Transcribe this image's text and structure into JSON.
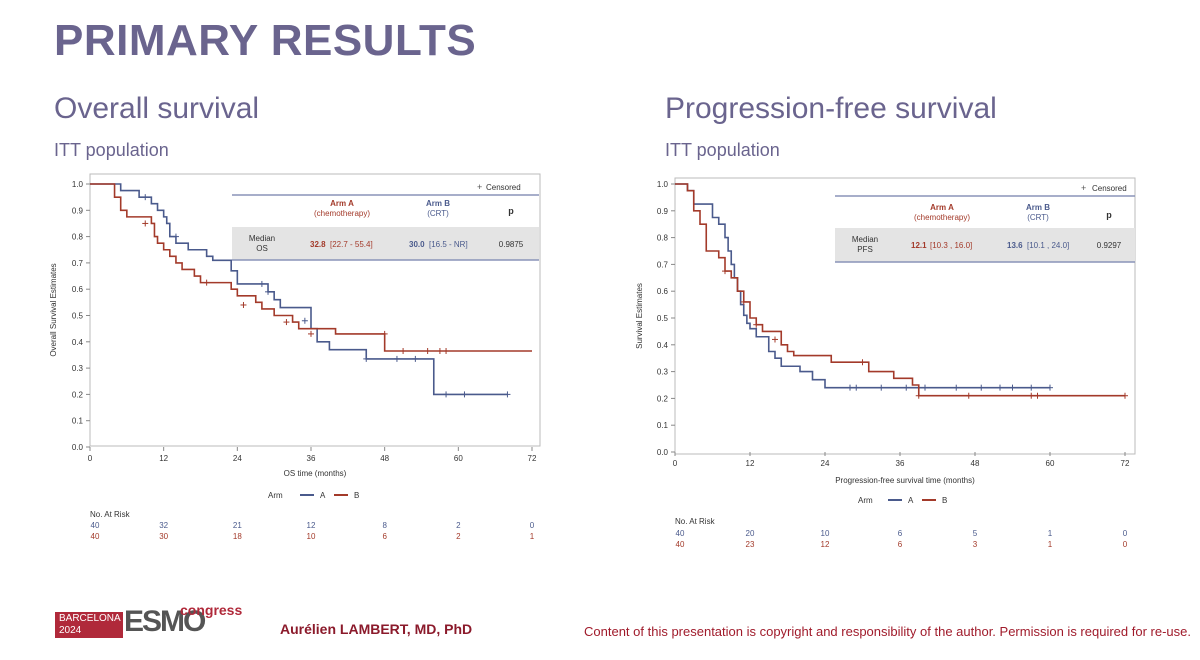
{
  "slide": {
    "title": "PRIMARY RESULTS",
    "author": "Aurélien LAMBERT, MD, PhD",
    "copyright": "Content of this presentation is copyright and responsibility of the author. Permission is required for re-use.",
    "logo": {
      "city": "BARCELONA",
      "year": "2024",
      "brand": "ESMO",
      "suffix": "congress"
    }
  },
  "colors": {
    "title": "#6a648e",
    "arm_a": "#4a5a8c",
    "arm_b": "#a33a2a",
    "brand": "#b0293a"
  },
  "panels": [
    {
      "heading": "Overall survival",
      "population": "ITT population",
      "censored_label": "Censored",
      "table": {
        "arm_a_header": [
          "Arm A",
          "(chemotherapy)"
        ],
        "arm_b_header": [
          "Arm B",
          "(CRT)"
        ],
        "p_header": "p",
        "row_label": [
          "Median",
          "OS"
        ],
        "arm_a_value": "32.8",
        "arm_a_ci": "[22.7 - 55.4]",
        "arm_b_value": "30.0",
        "arm_b_ci": "[16.5 - NR]",
        "p_value": "0.9875"
      },
      "legend": {
        "title": "Arm",
        "a": "A",
        "b": "B"
      },
      "at_risk": {
        "title": "No. At Risk",
        "a": [
          "40",
          "32",
          "21",
          "12",
          "8",
          "2",
          "0"
        ],
        "b": [
          "40",
          "30",
          "18",
          "10",
          "6",
          "2",
          "1"
        ]
      }
    },
    {
      "heading": "Progression-free survival",
      "population": "ITT population",
      "censored_label": "Censored",
      "table": {
        "arm_a_header": [
          "Arm A",
          "(chemotherapy)"
        ],
        "arm_b_header": [
          "Arm B",
          "(CRT)"
        ],
        "p_header": "p",
        "row_label": [
          "Median",
          "PFS"
        ],
        "arm_a_value": "12.1",
        "arm_a_ci": "[10.3 , 16.0]",
        "arm_b_value": "13.6",
        "arm_b_ci": "[10.1 , 24.0]",
        "p_value": "0.9297"
      },
      "legend": {
        "title": "Arm",
        "a": "A",
        "b": "B"
      },
      "at_risk": {
        "title": "No. At Risk",
        "a": [
          "40",
          "20",
          "10",
          "6",
          "5",
          "1",
          "0"
        ],
        "b": [
          "40",
          "23",
          "12",
          "6",
          "3",
          "1",
          "0"
        ]
      }
    }
  ],
  "chart_data": [
    {
      "type": "line",
      "subtype": "kaplan-meier",
      "xlabel": "OS time (months)",
      "ylabel": "Overall Survival Estimates",
      "xlim": [
        0,
        72
      ],
      "ylim": [
        0,
        1
      ],
      "xticks": [
        "0",
        "12",
        "24",
        "36",
        "48",
        "60",
        "72"
      ],
      "yticks": [
        "0.0",
        "0.1",
        "0.2",
        "0.3",
        "0.4",
        "0.5",
        "0.6",
        "0.7",
        "0.8",
        "0.9",
        "1.0"
      ],
      "series": [
        {
          "name": "A",
          "color": "#4a5a8c",
          "x": [
            0,
            5,
            8,
            10,
            11,
            12,
            12.5,
            13,
            14,
            16,
            19,
            20,
            22,
            23,
            24,
            29,
            30,
            31,
            36,
            37,
            39,
            45,
            50,
            55,
            56,
            63,
            68
          ],
          "y": [
            1,
            0.975,
            0.95,
            0.925,
            0.9,
            0.875,
            0.85,
            0.8,
            0.775,
            0.75,
            0.725,
            0.71,
            0.71,
            0.67,
            0.62,
            0.59,
            0.56,
            0.53,
            0.45,
            0.4,
            0.37,
            0.335,
            0.335,
            0.335,
            0.2,
            0.2,
            0.2
          ],
          "censored": [
            [
              9,
              0.95
            ],
            [
              14,
              0.8
            ],
            [
              28,
              0.62
            ],
            [
              29,
              0.59
            ],
            [
              35,
              0.48
            ],
            [
              45,
              0.335
            ],
            [
              50,
              0.335
            ],
            [
              53,
              0.335
            ],
            [
              58,
              0.2
            ],
            [
              61,
              0.2
            ],
            [
              68,
              0.2
            ]
          ]
        },
        {
          "name": "B",
          "color": "#a33a2a",
          "x": [
            0,
            4,
            5,
            6,
            10,
            10.5,
            11,
            12,
            13,
            14,
            15,
            17,
            18,
            20,
            23,
            24,
            27,
            28,
            30,
            33,
            34,
            38,
            40,
            44,
            47,
            48,
            53,
            58,
            72
          ],
          "y": [
            1,
            0.95,
            0.9,
            0.875,
            0.85,
            0.8,
            0.775,
            0.75,
            0.725,
            0.7,
            0.675,
            0.65,
            0.625,
            0.625,
            0.6,
            0.575,
            0.55,
            0.525,
            0.5,
            0.475,
            0.45,
            0.45,
            0.43,
            0.43,
            0.43,
            0.365,
            0.365,
            0.365,
            0.365
          ],
          "censored": [
            [
              9,
              0.85
            ],
            [
              19,
              0.625
            ],
            [
              25,
              0.54
            ],
            [
              32,
              0.475
            ],
            [
              36,
              0.43
            ],
            [
              48,
              0.43
            ],
            [
              51,
              0.365
            ],
            [
              55,
              0.365
            ],
            [
              57,
              0.365
            ],
            [
              58,
              0.365
            ]
          ]
        }
      ]
    },
    {
      "type": "line",
      "subtype": "kaplan-meier",
      "xlabel": "Progression-free survival time (months)",
      "ylabel": "Survival Estimates",
      "xlim": [
        0,
        72
      ],
      "ylim": [
        0,
        1
      ],
      "xticks": [
        "0",
        "12",
        "24",
        "36",
        "48",
        "60",
        "72"
      ],
      "yticks": [
        "0.0",
        "0.1",
        "0.2",
        "0.3",
        "0.4",
        "0.5",
        "0.6",
        "0.7",
        "0.8",
        "0.9",
        "1.0"
      ],
      "series": [
        {
          "name": "A",
          "color": "#4a5a8c",
          "x": [
            0,
            2,
            3,
            5,
            6,
            7,
            8,
            8.5,
            9,
            9.5,
            10,
            10.5,
            11,
            11.5,
            12,
            13,
            15,
            16,
            17,
            20,
            22,
            24,
            26,
            30,
            36,
            40,
            50,
            60
          ],
          "y": [
            1,
            0.975,
            0.925,
            0.925,
            0.875,
            0.85,
            0.8,
            0.75,
            0.7,
            0.65,
            0.6,
            0.55,
            0.51,
            0.48,
            0.46,
            0.43,
            0.375,
            0.35,
            0.32,
            0.3,
            0.27,
            0.24,
            0.24,
            0.24,
            0.24,
            0.24,
            0.24,
            0.24
          ],
          "censored": [
            [
              28,
              0.24
            ],
            [
              29,
              0.24
            ],
            [
              33,
              0.24
            ],
            [
              37,
              0.24
            ],
            [
              40,
              0.24
            ],
            [
              45,
              0.24
            ],
            [
              49,
              0.24
            ],
            [
              52,
              0.24
            ],
            [
              54,
              0.24
            ],
            [
              57,
              0.24
            ],
            [
              60,
              0.24
            ]
          ]
        },
        {
          "name": "B",
          "color": "#a33a2a",
          "x": [
            0,
            2,
            3,
            4,
            5,
            7,
            8,
            9,
            10,
            11,
            12,
            13,
            14,
            17,
            18,
            19,
            24,
            25,
            31,
            35,
            38,
            39,
            45,
            50,
            58,
            72
          ],
          "y": [
            1,
            0.975,
            0.9,
            0.85,
            0.75,
            0.725,
            0.675,
            0.65,
            0.6,
            0.56,
            0.5,
            0.475,
            0.45,
            0.4,
            0.375,
            0.36,
            0.36,
            0.335,
            0.3,
            0.275,
            0.25,
            0.21,
            0.21,
            0.21,
            0.21,
            0.21
          ],
          "censored": [
            [
              8,
              0.675
            ],
            [
              11,
              0.56
            ],
            [
              13,
              0.475
            ],
            [
              16,
              0.42
            ],
            [
              30,
              0.335
            ],
            [
              39,
              0.21
            ],
            [
              47,
              0.21
            ],
            [
              57,
              0.21
            ],
            [
              58,
              0.21
            ],
            [
              72,
              0.21
            ]
          ]
        }
      ]
    }
  ]
}
